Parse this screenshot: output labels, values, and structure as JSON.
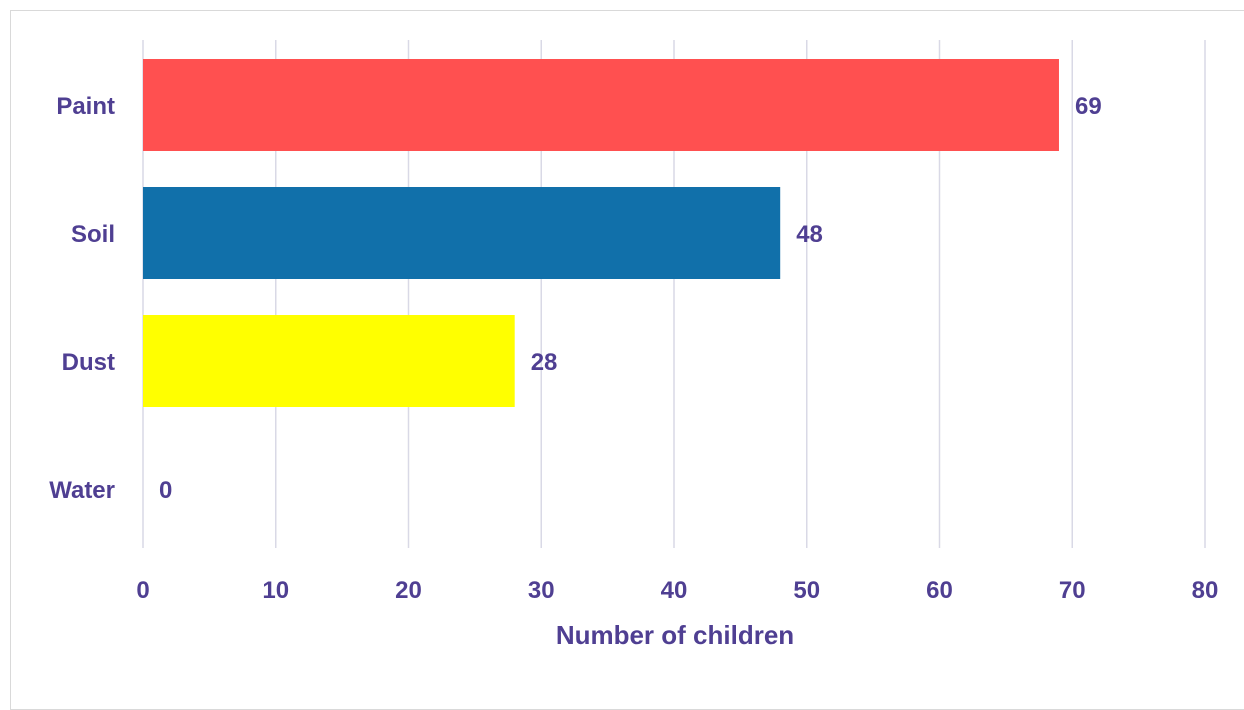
{
  "chart_data": {
    "type": "bar",
    "orientation": "horizontal",
    "categories": [
      "Paint",
      "Soil",
      "Dust",
      "Water"
    ],
    "values": [
      69,
      48,
      28,
      0
    ],
    "bar_colors": [
      "#ff5050",
      "#1170aa",
      "#ffff00",
      "#ffffff"
    ],
    "xlabel": "Number of children",
    "ylabel": "",
    "xlim": [
      0,
      80
    ],
    "xticks": [
      0,
      10,
      20,
      30,
      40,
      50,
      60,
      70,
      80
    ],
    "grid": true,
    "legend": "none",
    "text_color": "#4f3f92",
    "grid_color": "#d9d9e6"
  }
}
